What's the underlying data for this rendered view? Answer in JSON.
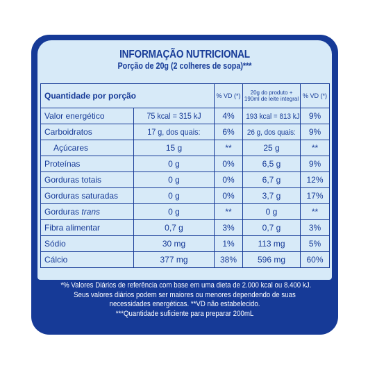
{
  "title": "INFORMAÇÃO NUTRICIONAL",
  "subtitle": "Porção de 20g (2 colheres de sopa)***",
  "header": {
    "quantity_label": "Quantidade por porção",
    "vd_label": "% VD (*)",
    "prepared_label": "20g do produto + 190ml de leite integral",
    "vd_prepared_label": "% VD (*)"
  },
  "rows": [
    {
      "nutrient": "Valor energético",
      "amount": "75 kcal = 315 kJ",
      "vd": "4%",
      "prepared": "193 kcal = 813 kJ",
      "vd_prepared": "9%"
    },
    {
      "nutrient": "Carboidratos",
      "amount": "17 g, dos quais:",
      "vd": "6%",
      "prepared": "26 g, dos quais:",
      "vd_prepared": "9%"
    },
    {
      "nutrient": "Açúcares",
      "amount": "15 g",
      "vd": "**",
      "prepared": "25 g",
      "vd_prepared": "**"
    },
    {
      "nutrient": "Proteínas",
      "amount": "0 g",
      "vd": "0%",
      "prepared": "6,5 g",
      "vd_prepared": "9%"
    },
    {
      "nutrient": "Gorduras totais",
      "amount": "0 g",
      "vd": "0%",
      "prepared": "6,7 g",
      "vd_prepared": "12%"
    },
    {
      "nutrient": "Gorduras saturadas",
      "amount": "0 g",
      "vd": "0%",
      "prepared": "3,7 g",
      "vd_prepared": "17%"
    },
    {
      "nutrient_main": "Gorduras",
      "nutrient_em": "trans",
      "amount": "0 g",
      "vd": "**",
      "prepared": "0 g",
      "vd_prepared": "**"
    },
    {
      "nutrient": "Fibra alimentar",
      "amount": "0,7 g",
      "vd": "3%",
      "prepared": "0,7 g",
      "vd_prepared": "3%"
    },
    {
      "nutrient": "Sódio",
      "amount": "30 mg",
      "vd": "1%",
      "prepared": "113 mg",
      "vd_prepared": "5%"
    },
    {
      "nutrient": "Cálcio",
      "amount": "377 mg",
      "vd": "38%",
      "prepared": "596 mg",
      "vd_prepared": "60%"
    }
  ],
  "footnotes": [
    "*% Valores Diários de referência com base em uma dieta de 2.000 kcal ou 8.400 kJ.",
    "Seus valores diários podem ser maiores ou menores dependendo de suas",
    "necessidades energéticas. **VD não estabelecido.",
    "***Quantidade suficiente para preparar 200mL"
  ]
}
